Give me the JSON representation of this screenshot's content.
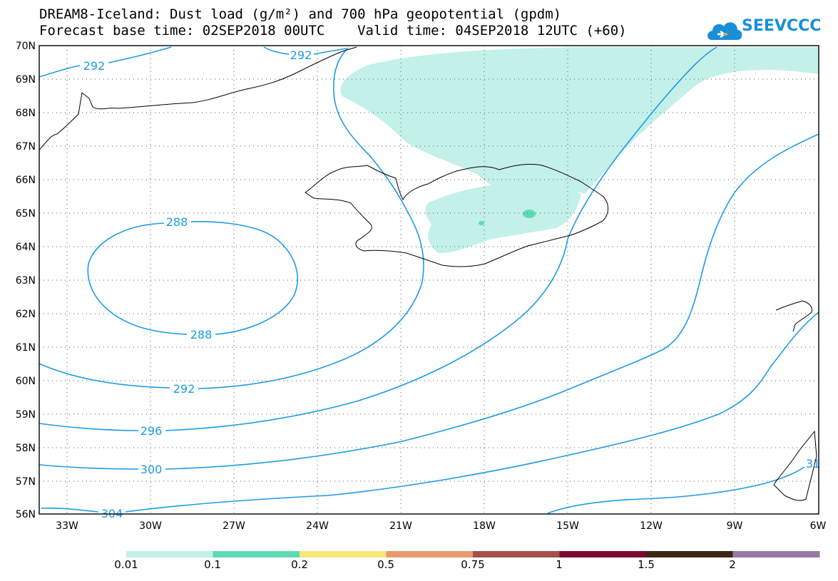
{
  "title_line1": "DREAM8-Iceland: Dust load (g/m²) and 700 hPa geopotential (gpdm)",
  "title_line2": "Forecast base time: 02SEP2018 00UTC    Valid time: 04SEP2018 12UTC (+60)",
  "logo_text": "SEEVCCC",
  "map": {
    "lat_labels": [
      "70N",
      "69N",
      "68N",
      "67N",
      "66N",
      "65N",
      "64N",
      "63N",
      "62N",
      "61N",
      "60N",
      "59N",
      "58N",
      "57N",
      "56N"
    ],
    "lon_labels": [
      "33W",
      "30W",
      "27W",
      "24W",
      "21W",
      "18W",
      "15W",
      "12W",
      "9W",
      "6W"
    ],
    "contour_labels": [
      "292",
      "292",
      "288",
      "288",
      "292",
      "296",
      "300",
      "304",
      "31"
    ]
  },
  "legend": {
    "labels": [
      "0.01",
      "0.1",
      "0.2",
      "0.5",
      "0.75",
      "1",
      "1.5",
      "2"
    ],
    "colors": [
      "#c4f0ea",
      "#5edbb4",
      "#f8e67a",
      "#e79a6e",
      "#a55149",
      "#7a0a31",
      "#3d2614",
      "#9a78a6"
    ]
  },
  "colors": {
    "contour": "#1e9be6",
    "dust_light": "#c4f0ea",
    "dust_mid": "#5edbb4"
  }
}
